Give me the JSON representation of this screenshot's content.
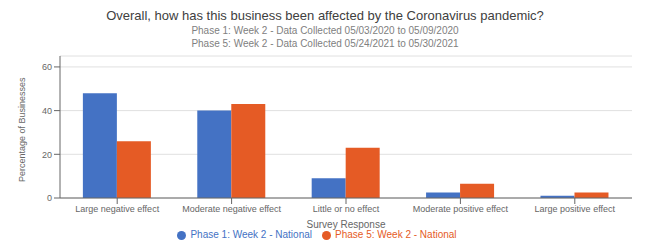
{
  "chart_data": {
    "type": "bar",
    "title": "Overall, how has this business been affected by the Coronavirus pandemic?",
    "subtitle": [
      "Phase 1: Week 2 - Data Collected 05/03/2020 to 05/09/2020",
      "Phase 5: Week 2 - Data Collected 05/24/2021 to 05/30/2021"
    ],
    "categories": [
      "Large negative effect",
      "Moderate negative effect",
      "Little or no effect",
      "Moderate positive effect",
      "Large positive effect"
    ],
    "series": [
      {
        "name": "Phase 1: Week 2 - National",
        "color": "#4472C4",
        "values": [
          48,
          40,
          9,
          2.5,
          1
        ]
      },
      {
        "name": "Phase 5: Week 2 - National",
        "color": "#E55B25",
        "values": [
          26,
          43,
          23,
          6.5,
          2.5
        ]
      }
    ],
    "xlabel": "Survey Response",
    "ylabel": "Percentage of Businesses",
    "ylim": [
      0,
      65
    ],
    "yticks": [
      0,
      20,
      40,
      60
    ],
    "grid": true,
    "legend": "bottom"
  }
}
